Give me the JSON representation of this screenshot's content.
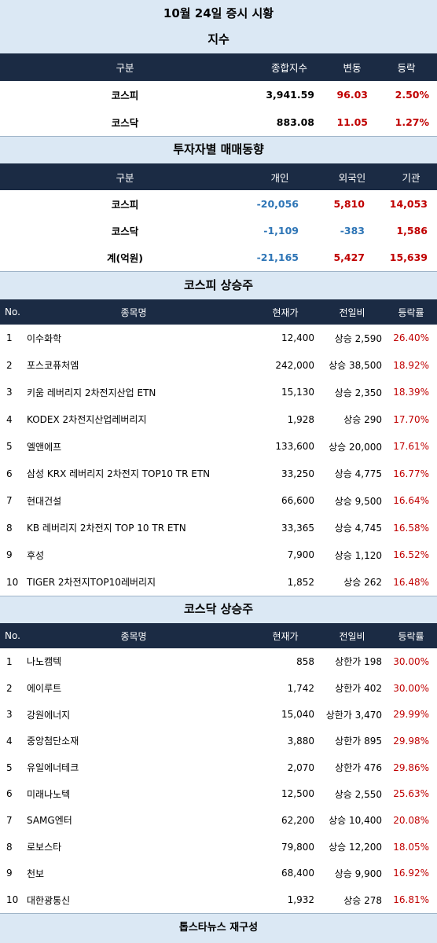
{
  "title": "10월 24일 증시 시황",
  "index_section": {
    "heading": "지수",
    "headers": [
      "구분",
      "종합지수",
      "변동",
      "등락"
    ],
    "rows": [
      {
        "name": "코스피",
        "value": "3,941.59",
        "change": "96.03",
        "pct": "2.50%"
      },
      {
        "name": "코스닥",
        "value": "883.08",
        "change": "11.05",
        "pct": "1.27%"
      }
    ]
  },
  "investor_section": {
    "heading": "투자자별 매매동향",
    "headers": [
      "구분",
      "개인",
      "외국인",
      "기관"
    ],
    "rows": [
      {
        "name": "코스피",
        "individual": "-20,056",
        "foreign": "5,810",
        "institution": "14,053"
      },
      {
        "name": "코스닥",
        "individual": "-1,109",
        "foreign": "-383",
        "institution": "1,586"
      },
      {
        "name": "계(억원)",
        "individual": "-21,165",
        "foreign": "5,427",
        "institution": "15,639"
      }
    ]
  },
  "kospi_gainers": {
    "heading": "코스피 상승주",
    "headers": [
      "No.",
      "종목명",
      "현재가",
      "전일비",
      "등락률"
    ],
    "rows": [
      {
        "no": "1",
        "name": "이수화학",
        "price": "12,400",
        "diff": "상승 2,590",
        "pct": "26.40%"
      },
      {
        "no": "2",
        "name": "포스코퓨처엠",
        "price": "242,000",
        "diff": "상승 38,500",
        "pct": "18.92%"
      },
      {
        "no": "3",
        "name": "키움 레버리지 2차전지산업 ETN",
        "price": "15,130",
        "diff": "상승 2,350",
        "pct": "18.39%"
      },
      {
        "no": "4",
        "name": "KODEX 2차전지산업레버리지",
        "price": "1,928",
        "diff": "상승 290",
        "pct": "17.70%"
      },
      {
        "no": "5",
        "name": "엘앤에프",
        "price": "133,600",
        "diff": "상승 20,000",
        "pct": "17.61%"
      },
      {
        "no": "6",
        "name": "삼성 KRX 레버리지 2차전지 TOP10 TR ETN",
        "price": "33,250",
        "diff": "상승 4,775",
        "pct": "16.77%"
      },
      {
        "no": "7",
        "name": "현대건설",
        "price": "66,600",
        "diff": "상승 9,500",
        "pct": "16.64%"
      },
      {
        "no": "8",
        "name": "KB 레버리지 2차전지 TOP 10 TR ETN",
        "price": "33,365",
        "diff": "상승 4,745",
        "pct": "16.58%"
      },
      {
        "no": "9",
        "name": "후성",
        "price": "7,900",
        "diff": "상승 1,120",
        "pct": "16.52%"
      },
      {
        "no": "10",
        "name": "TIGER 2차전지TOP10레버리지",
        "price": "1,852",
        "diff": "상승 262",
        "pct": "16.48%"
      }
    ]
  },
  "kosdaq_gainers": {
    "heading": "코스닥 상승주",
    "headers": [
      "No.",
      "종목명",
      "현재가",
      "전일비",
      "등락률"
    ],
    "rows": [
      {
        "no": "1",
        "name": "나노캠텍",
        "price": "858",
        "diff": "상한가 198",
        "pct": "30.00%"
      },
      {
        "no": "2",
        "name": "에이루트",
        "price": "1,742",
        "diff": "상한가 402",
        "pct": "30.00%"
      },
      {
        "no": "3",
        "name": "강원에너지",
        "price": "15,040",
        "diff": "상한가 3,470",
        "pct": "29.99%"
      },
      {
        "no": "4",
        "name": "중앙첨단소재",
        "price": "3,880",
        "diff": "상한가 895",
        "pct": "29.98%"
      },
      {
        "no": "5",
        "name": "유일에너테크",
        "price": "2,070",
        "diff": "상한가 476",
        "pct": "29.86%"
      },
      {
        "no": "6",
        "name": "미래나노텍",
        "price": "12,500",
        "diff": "상승 2,550",
        "pct": "25.63%"
      },
      {
        "no": "7",
        "name": "SAMG엔터",
        "price": "62,200",
        "diff": "상승 10,400",
        "pct": "20.08%"
      },
      {
        "no": "8",
        "name": "로보스타",
        "price": "79,800",
        "diff": "상승 12,200",
        "pct": "18.05%"
      },
      {
        "no": "9",
        "name": "천보",
        "price": "68,400",
        "diff": "상승 9,900",
        "pct": "16.92%"
      },
      {
        "no": "10",
        "name": "대한광통신",
        "price": "1,932",
        "diff": "상승 278",
        "pct": "16.81%"
      }
    ]
  },
  "footer": "톱스타뉴스 재구성",
  "colors": {
    "header_bg": "#1b2b44",
    "band_bg": "#dbe8f4",
    "red": "#c00000",
    "blue": "#2e75b6"
  }
}
